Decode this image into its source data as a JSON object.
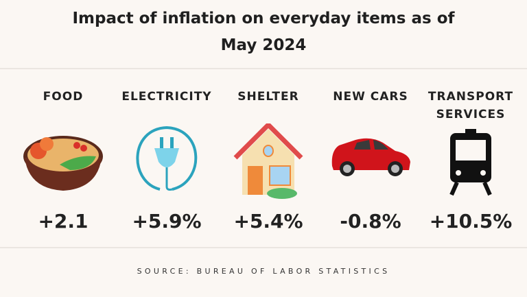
{
  "title": {
    "line1": "Impact of inflation on everyday items as of",
    "line2": "May 2024"
  },
  "items": [
    {
      "label": "FOOD",
      "value": "+2.1",
      "icon": "food-bowl-icon"
    },
    {
      "label": "ELECTRICITY",
      "value": "+5.9%",
      "icon": "electric-plug-icon"
    },
    {
      "label": "SHELTER",
      "value": "+5.4%",
      "icon": "house-icon"
    },
    {
      "label": "NEW CARS",
      "value": "-0.8%",
      "icon": "car-icon"
    },
    {
      "label": "TRANSPORT SERVICES",
      "value": "+10.5%",
      "icon": "train-icon"
    }
  ],
  "source": "SOURCE: BUREAU OF LABOR STATISTICS",
  "colors": {
    "background": "#fbf7f3",
    "text": "#222222",
    "car": "#d0141b",
    "plug": "#7dd3ea",
    "cord": "#2ba3bd",
    "roof": "#e04b4b"
  }
}
